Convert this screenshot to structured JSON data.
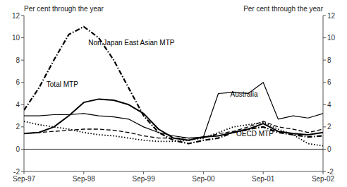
{
  "chart_data": {
    "type": "line",
    "ylabel": "Per cent through the year",
    "y2label": "Per cent through the year",
    "categories": [
      "Sep-97",
      null,
      null,
      null,
      "Sep-98",
      null,
      null,
      null,
      "Sep-99",
      null,
      null,
      null,
      "Sep-00",
      null,
      null,
      null,
      "Sep-01",
      null,
      null,
      null,
      "Sep-02"
    ],
    "series": [
      {
        "color": "#000000",
        "line_style": "solid",
        "values": [
          1.4,
          1.5,
          2.0,
          3.0,
          4.2,
          4.5,
          4.4,
          4.0,
          3.2,
          1.8,
          1.0,
          0.8,
          1.1,
          1.2,
          1.5,
          1.8,
          2.3,
          1.6,
          1.4,
          1.3,
          1.5
        ]
      },
      {
        "color": "#000000",
        "line_style": "dashdot",
        "values": [
          3.5,
          5.5,
          8.0,
          10.3,
          11.0,
          10.0,
          8.0,
          5.5,
          3.0,
          1.5,
          0.8,
          0.5,
          0.8,
          1.0,
          1.5,
          1.8,
          2.0,
          1.5,
          1.3,
          1.1,
          1.2
        ]
      },
      {
        "color": "#000000",
        "line_style": "solid",
        "values": [
          3.0,
          3.0,
          3.1,
          3.1,
          3.2,
          3.0,
          2.9,
          2.7,
          2.0,
          1.5,
          1.2,
          1.0,
          1.1,
          5.0,
          5.1,
          5.0,
          6.0,
          2.7,
          3.0,
          2.8,
          3.2
        ]
      },
      {
        "color": "#000000",
        "line_style": "dotted",
        "values": [
          2.5,
          2.2,
          2.0,
          1.8,
          1.5,
          1.3,
          1.2,
          1.0,
          0.8,
          0.7,
          0.7,
          0.8,
          1.0,
          1.5,
          2.0,
          2.2,
          2.4,
          1.8,
          1.3,
          0.5,
          0.3
        ]
      },
      {
        "color": "#000000",
        "line_style": "dashed",
        "values": [
          1.4,
          1.5,
          1.6,
          1.7,
          1.8,
          1.8,
          1.7,
          1.5,
          1.2,
          1.0,
          1.0,
          1.0,
          1.0,
          1.4,
          1.6,
          2.0,
          2.5,
          2.0,
          1.8,
          1.5,
          1.8
        ]
      }
    ],
    "ylim": [
      -2,
      12
    ],
    "yticks": [
      -2,
      0,
      2,
      4,
      6,
      8,
      10,
      12
    ],
    "y2lim": [
      -2,
      12
    ],
    "y2ticks": [
      -2,
      0,
      2,
      4,
      6,
      8,
      10,
      12
    ],
    "annotations": [
      {
        "text": "Non Japan East Asian MTP",
        "x": 4.3,
        "y": 9.2
      },
      {
        "text": "Total MTP",
        "x": 1.5,
        "y": 5.5
      },
      {
        "text": "Australia",
        "x": 13.8,
        "y": 4.6
      },
      {
        "text": "OECD MTP",
        "x": 14.2,
        "y": 1.05
      }
    ],
    "grid": false
  }
}
